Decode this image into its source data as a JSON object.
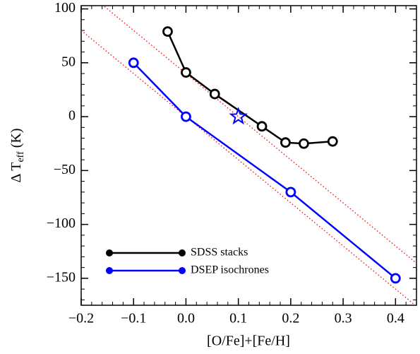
{
  "chart_data": {
    "type": "line",
    "xlabel": "[O/Fe]+[Fe/H]",
    "ylabel": [
      "Δ T",
      "eff",
      " (K)"
    ],
    "xlim": [
      -0.2,
      0.44
    ],
    "ylim": [
      -175,
      103
    ],
    "xticks": [
      {
        "value": -0.2,
        "label": "−0.2"
      },
      {
        "value": -0.1,
        "label": "−0.1"
      },
      {
        "value": 0,
        "label": "0.0"
      },
      0.1,
      0.2,
      0.3,
      0.4
    ],
    "yticks": [
      {
        "value": -150,
        "label": "−150"
      },
      {
        "value": -100,
        "label": "−100"
      },
      {
        "value": -50,
        "label": "−50"
      },
      0,
      50,
      100
    ],
    "legend": "lower left",
    "series": [
      {
        "name": "SDSS stacks",
        "color": "#000000",
        "x": [
          -0.035,
          0,
          0.055,
          0.145,
          0.19,
          0.225,
          0.28
        ],
        "values": [
          79,
          41,
          21,
          -9,
          -24,
          -25,
          -23
        ]
      },
      {
        "name": "DSEP isochrones",
        "color": "#0000ff",
        "x": [
          -0.1,
          0,
          0.2,
          0.4
        ],
        "values": [
          50,
          0,
          -70,
          -150
        ]
      }
    ],
    "star": {
      "x": 0.1,
      "y": 0,
      "color": "#0000ff"
    },
    "reference_lines": [
      {
        "color": "#ff0000",
        "x": [
          -0.16,
          0.44
        ],
        "y": [
          104,
          -136
        ]
      },
      {
        "color": "#ff0000",
        "x": [
          -0.2,
          0.44
        ],
        "y": [
          80,
          -176
        ]
      }
    ]
  }
}
